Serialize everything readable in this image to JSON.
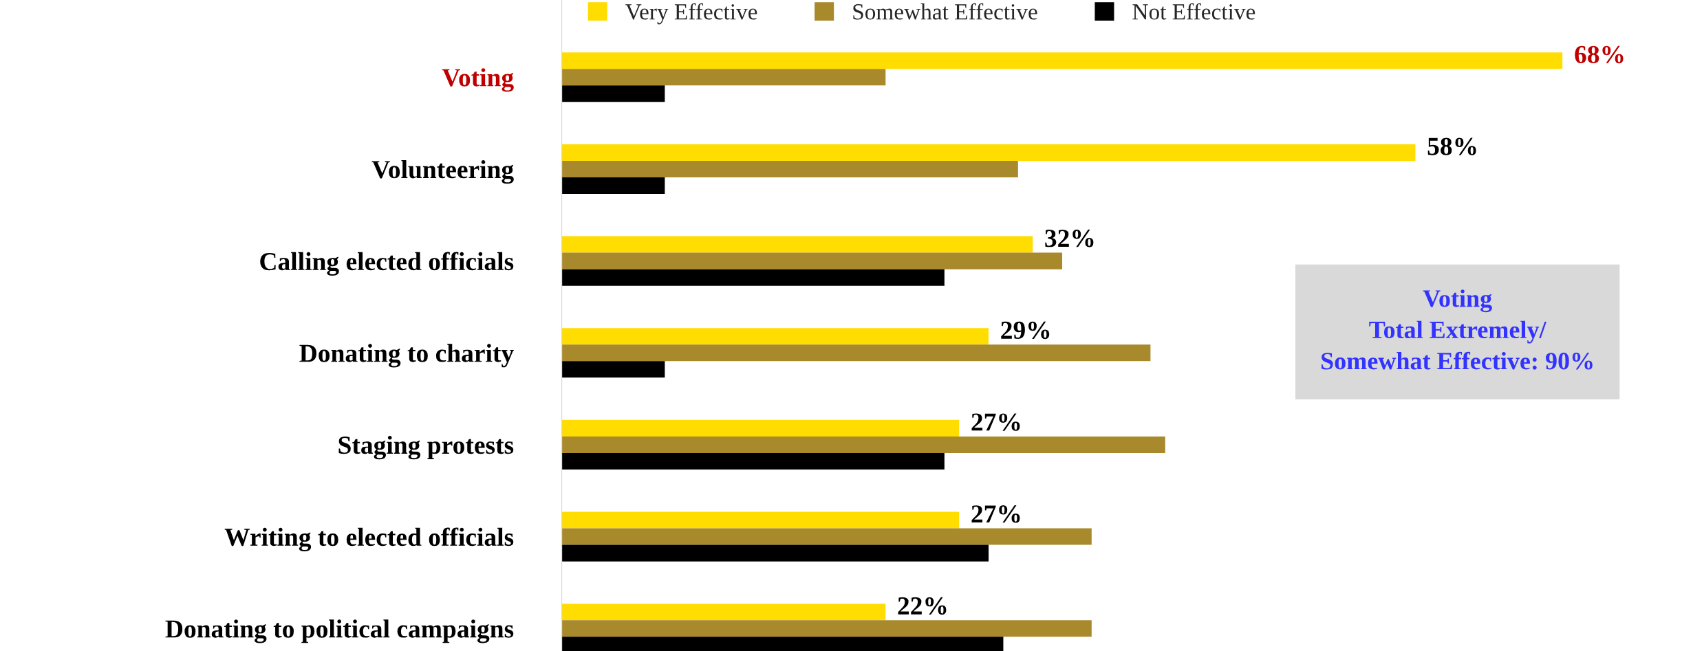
{
  "chart_data": {
    "type": "bar",
    "orientation": "horizontal",
    "categories": [
      "Voting",
      "Volunteering",
      "Calling elected officials",
      "Donating to charity",
      "Staging protests",
      "Writing to elected officials",
      "Donating to political campaigns"
    ],
    "series": [
      {
        "name": "Very Effective",
        "color": "#ffdd00",
        "values": [
          68,
          58,
          32,
          29,
          27,
          27,
          22
        ],
        "value_labels": [
          "68%",
          "58%",
          "32%",
          "29%",
          "27%",
          "27%",
          "22%"
        ]
      },
      {
        "name": "Somewhat Effective",
        "color": "#a8892c",
        "values": [
          22,
          31,
          34,
          40,
          41,
          36,
          36
        ]
      },
      {
        "name": "Not Effective",
        "color": "#000000",
        "values": [
          7,
          7,
          26,
          7,
          26,
          29,
          30
        ]
      }
    ],
    "grid": false,
    "legend": "top",
    "annotations": [
      "Voting\nTotal Extremely/\nSomewhat Effective: 90%"
    ]
  }
}
